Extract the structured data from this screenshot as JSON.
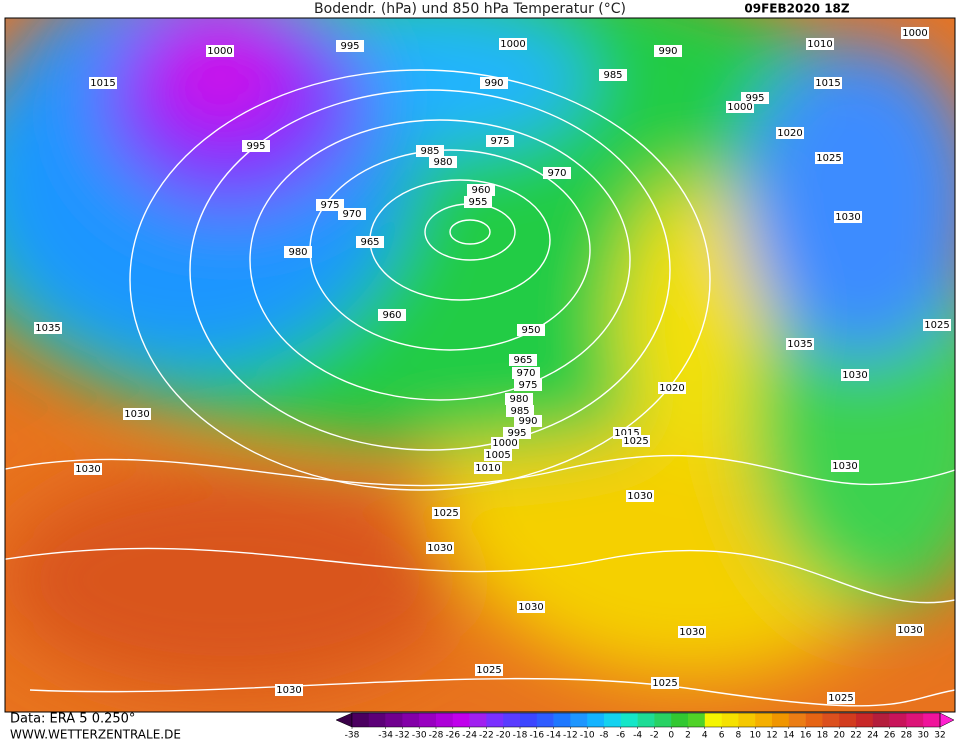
{
  "header": {
    "title": "Bodendr. (hPa) und 850 hPa Temperatur (°C)",
    "date": "09FEB2020 18Z"
  },
  "footer": {
    "source": "Data: ERA 5 0.250°",
    "website": "WWW.WETTERZENTRALE.DE"
  },
  "map": {
    "isobar_labels": [
      1000,
      995,
      1000,
      990,
      1010,
      1000,
      1015,
      990,
      985,
      995,
      1000,
      1015,
      995,
      985,
      980,
      975,
      970,
      1020,
      1025,
      960,
      955,
      975,
      970,
      965,
      980,
      960,
      950,
      965,
      970,
      975,
      980,
      985,
      990,
      995,
      1000,
      1005,
      1010,
      1035,
      1035,
      1025,
      1030,
      1020,
      1015,
      1025,
      1030,
      1030,
      1030,
      1030,
      1025,
      1030,
      1030,
      1030,
      1030,
      1025,
      1025,
      1030,
      1025,
      1030
    ]
  },
  "colorbar": {
    "ticks": [
      -38,
      -34,
      -32,
      -30,
      -28,
      -26,
      -24,
      -22,
      -20,
      -18,
      -16,
      -14,
      -12,
      -10,
      -8,
      -6,
      -4,
      -2,
      0,
      2,
      4,
      6,
      8,
      10,
      12,
      14,
      16,
      18,
      20,
      22,
      24,
      26,
      28,
      30,
      32
    ],
    "lim": [
      -38,
      32
    ],
    "colors": [
      "#4b0060",
      "#5c0078",
      "#70008f",
      "#8300a8",
      "#9800c0",
      "#ad00d8",
      "#c000ec",
      "#a020f0",
      "#7a30ff",
      "#5a3cff",
      "#3c46ff",
      "#2f5cff",
      "#1e78ff",
      "#1e96ff",
      "#14b4ff",
      "#14d2f0",
      "#14e6c8",
      "#1edc96",
      "#28d264",
      "#32c832",
      "#50d228",
      "#f5f500",
      "#f5e100",
      "#f5c800",
      "#f5af00",
      "#f09600",
      "#eb7d14",
      "#e66414",
      "#dc501e",
      "#d23c1e",
      "#c82828",
      "#b41e3c",
      "#c8145a",
      "#dc1478",
      "#f0149b"
    ],
    "under_color": "#3a0048",
    "over_color": "#ff20d0"
  }
}
